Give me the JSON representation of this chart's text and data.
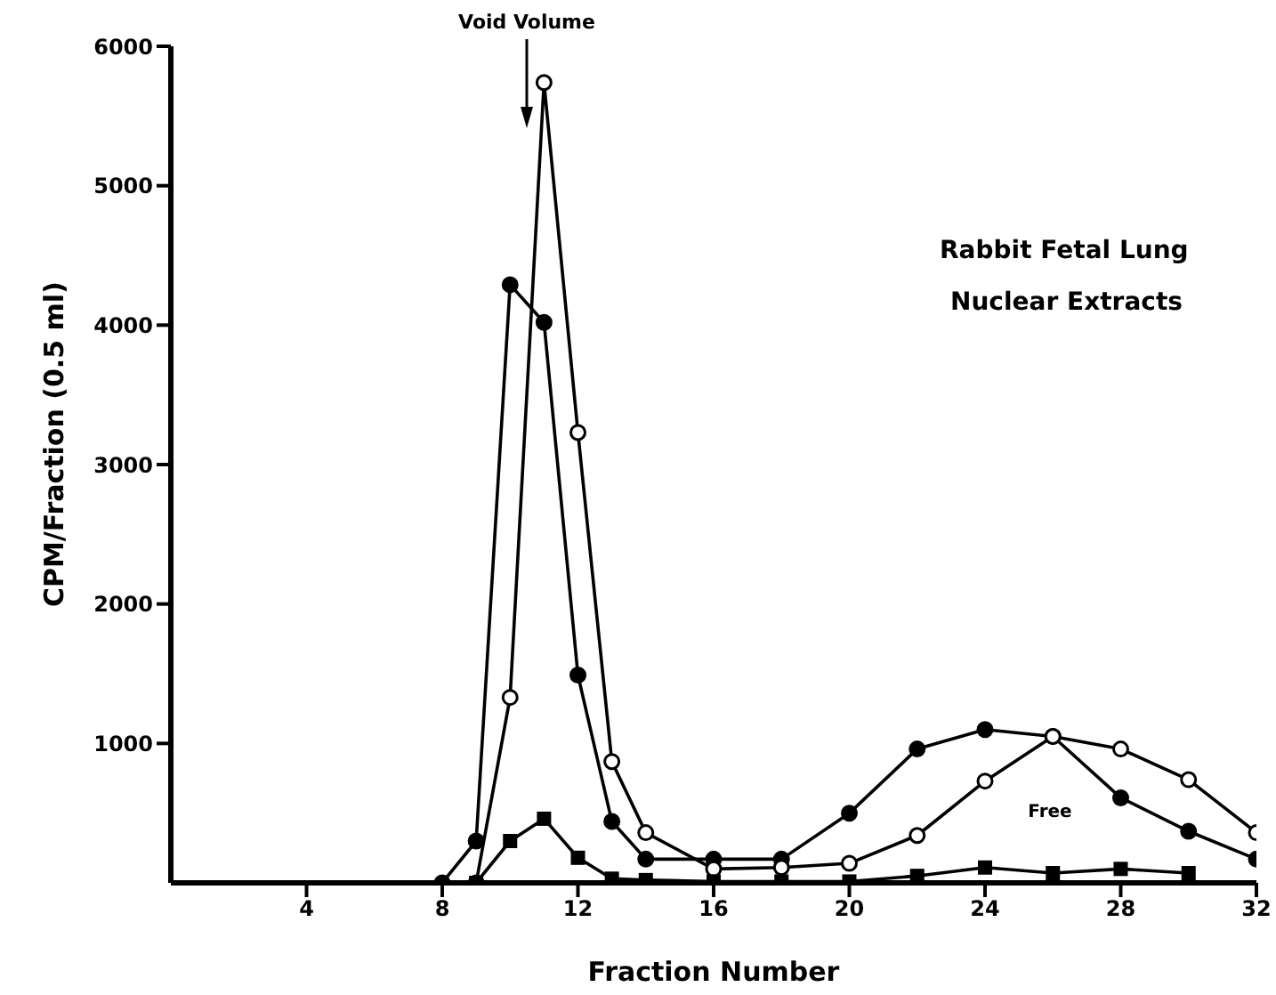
{
  "chart_data": {
    "type": "line",
    "title": "Rabbit Fetal Lung\nNuclear Extracts",
    "xlabel": "Fraction Number",
    "ylabel": "CPM/Fraction (0.5 ml)",
    "xlim": [
      0,
      32
    ],
    "xticks": [
      4,
      8,
      12,
      16,
      20,
      24,
      28,
      32
    ],
    "ylim": [
      0,
      6000
    ],
    "yticks": [
      1000,
      2000,
      3000,
      4000,
      5000,
      6000
    ],
    "grid": false,
    "legend": false,
    "series": [
      {
        "color": "#000000",
        "marker": "circle",
        "x": [
          8,
          9,
          10,
          11,
          12,
          13,
          14,
          16,
          18,
          20,
          22,
          24,
          26,
          28,
          30,
          32
        ],
        "values": [
          0,
          300,
          4290,
          4020,
          1490,
          440,
          170,
          170,
          170,
          500,
          960,
          1100,
          1050,
          610,
          370,
          170
        ]
      },
      {
        "color": "#000000",
        "marker": "circle",
        "x": [
          9,
          10,
          11,
          12,
          13,
          14,
          16,
          18,
          20,
          22,
          24,
          26,
          28,
          30,
          32
        ],
        "values": [
          0,
          1330,
          5740,
          3230,
          870,
          360,
          100,
          110,
          140,
          340,
          730,
          1050,
          960,
          740,
          360
        ]
      },
      {
        "color": "#000000",
        "marker": "square",
        "x": [
          9,
          10,
          11,
          12,
          13,
          14,
          16,
          18,
          20,
          22,
          24,
          26,
          28,
          30
        ],
        "values": [
          0,
          300,
          460,
          180,
          30,
          20,
          10,
          10,
          10,
          50,
          110,
          70,
          100,
          70
        ]
      }
    ],
    "annotations": [
      "Void Volume",
      "Free"
    ]
  }
}
